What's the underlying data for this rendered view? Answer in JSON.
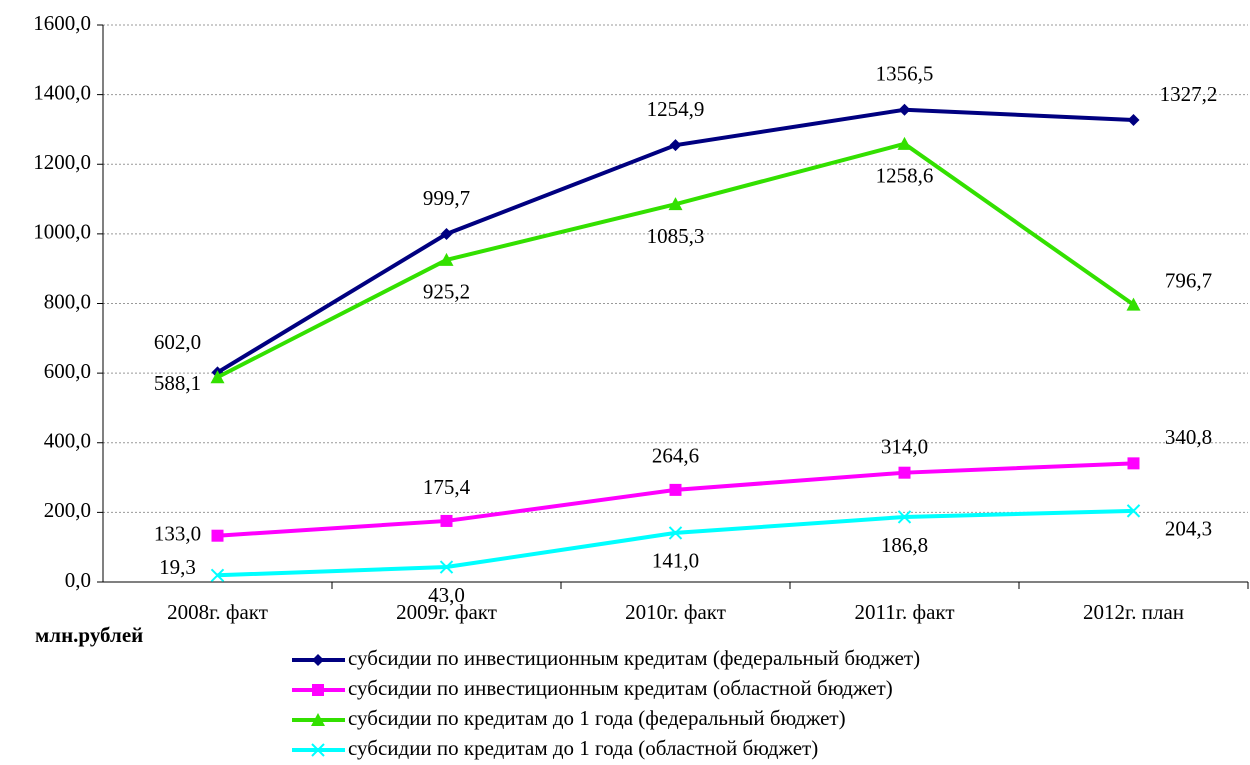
{
  "chart_data": {
    "type": "line",
    "y_axis_label": "млн.рублей",
    "categories": [
      "2008г. факт",
      "2009г. факт",
      "2010г. факт",
      "2011г. факт",
      "2012г. план"
    ],
    "series": [
      {
        "name": "субсидии по инвестиционным кредитам (федеральный бюджет)",
        "color": "#000080",
        "marker": "diamond",
        "values": [
          602.0,
          999.7,
          1254.9,
          1356.5,
          1327.2
        ],
        "value_labels": [
          "602,0",
          "999,7",
          "1254,9",
          "1356,5",
          "1327,2"
        ]
      },
      {
        "name": "субсидии по инвестиционным кредитам (областной бюджет)",
        "color": "#ff00ff",
        "marker": "square",
        "values": [
          133.0,
          175.4,
          264.6,
          314.0,
          340.8
        ],
        "value_labels": [
          "133,0",
          "175,4",
          "264,6",
          "314,0",
          "340,8"
        ]
      },
      {
        "name": "субсидии по кредитам до 1 года (федеральный бюджет)",
        "color": "#33e000",
        "marker": "triangle",
        "values": [
          588.1,
          925.2,
          1085.3,
          1258.6,
          796.7
        ],
        "value_labels": [
          "588,1",
          "925,2",
          "1085,3",
          "1258,6",
          "796,7"
        ]
      },
      {
        "name": "субсидии по кредитам до 1 года (областной бюджет)",
        "color": "#00ffff",
        "marker": "x",
        "values": [
          19.3,
          43.0,
          141.0,
          186.8,
          204.3
        ],
        "value_labels": [
          "19,3",
          "43,0",
          "141,0",
          "186,8",
          "204,3"
        ]
      }
    ],
    "ylim": [
      0,
      1600
    ],
    "yticks": [
      {
        "value": 0,
        "label": "0,0"
      },
      {
        "value": 200,
        "label": "200,0"
      },
      {
        "value": 400,
        "label": "400,0"
      },
      {
        "value": 600,
        "label": "600,0"
      },
      {
        "value": 800,
        "label": "800,0"
      },
      {
        "value": 1000,
        "label": "1000,0"
      },
      {
        "value": 1200,
        "label": "1200,0"
      },
      {
        "value": 1400,
        "label": "1400,0"
      },
      {
        "value": 1600,
        "label": "1600,0"
      }
    ],
    "grid": true
  }
}
